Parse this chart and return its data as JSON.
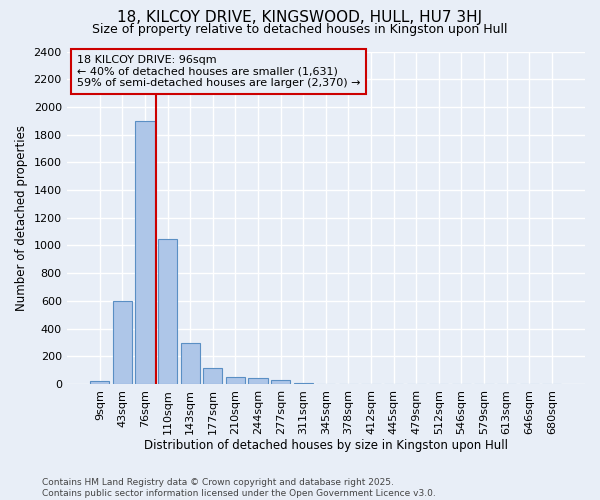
{
  "title": "18, KILCOY DRIVE, KINGSWOOD, HULL, HU7 3HJ",
  "subtitle": "Size of property relative to detached houses in Kingston upon Hull",
  "xlabel": "Distribution of detached houses by size in Kingston upon Hull",
  "ylabel": "Number of detached properties",
  "footer": "Contains HM Land Registry data © Crown copyright and database right 2025.\nContains public sector information licensed under the Open Government Licence v3.0.",
  "categories": [
    "9sqm",
    "43sqm",
    "76sqm",
    "110sqm",
    "143sqm",
    "177sqm",
    "210sqm",
    "244sqm",
    "277sqm",
    "311sqm",
    "345sqm",
    "378sqm",
    "412sqm",
    "445sqm",
    "479sqm",
    "512sqm",
    "546sqm",
    "579sqm",
    "613sqm",
    "646sqm",
    "680sqm"
  ],
  "values": [
    20,
    600,
    1900,
    1050,
    295,
    115,
    50,
    45,
    30,
    5,
    0,
    0,
    0,
    0,
    0,
    0,
    0,
    0,
    0,
    0,
    0
  ],
  "bar_color": "#aec6e8",
  "bar_edge_color": "#5a8fc4",
  "background_color": "#e8eef7",
  "grid_color": "#ffffff",
  "vline_color": "#cc0000",
  "annotation_title": "18 KILCOY DRIVE: 96sqm",
  "annotation_line1": "← 40% of detached houses are smaller (1,631)",
  "annotation_line2": "59% of semi-detached houses are larger (2,370) →",
  "annotation_box_color": "#cc0000",
  "ylim": [
    0,
    2400
  ],
  "yticks": [
    0,
    200,
    400,
    600,
    800,
    1000,
    1200,
    1400,
    1600,
    1800,
    2000,
    2200,
    2400
  ],
  "title_fontsize": 11,
  "subtitle_fontsize": 9,
  "xlabel_fontsize": 8.5,
  "ylabel_fontsize": 8.5,
  "tick_fontsize": 8,
  "annotation_fontsize": 8,
  "footer_fontsize": 6.5
}
